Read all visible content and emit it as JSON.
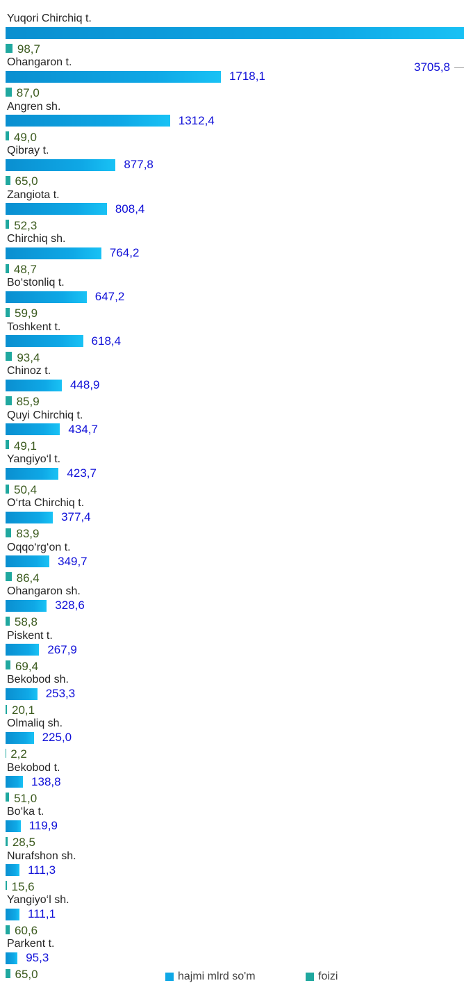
{
  "chart_data": {
    "type": "bar",
    "orientation": "horizontal",
    "categories": [
      "Yuqori Chirchiq t.",
      "Ohangaron t.",
      "Angren sh.",
      "Qibray t.",
      "Zangiota t.",
      "Chirchiq sh.",
      "Bo‘stonliq t.",
      "Toshkent t.",
      "Chinoz t.",
      "Quyi Chirchiq t.",
      "Yangiyo‘l t.",
      "O‘rta Chirchiq t.",
      "Oqqo‘rg‘on t.",
      "Ohangaron sh.",
      "Piskent t.",
      "Bekobod sh.",
      "Olmaliq sh.",
      "Bekobod t.",
      "Bo‘ka t.",
      "Nurafshon sh.",
      "Yangiyo‘l sh.",
      "Parkent t."
    ],
    "series": [
      {
        "name": "hajmi mlrd so'm",
        "color": "#0fa8e6",
        "values": [
          3705.8,
          1718.1,
          1312.4,
          877.8,
          808.4,
          764.2,
          647.2,
          618.4,
          448.9,
          434.7,
          423.7,
          377.4,
          349.7,
          328.6,
          267.9,
          253.3,
          225.0,
          138.8,
          119.9,
          111.3,
          111.1,
          95.3
        ],
        "value_labels": [
          "3705,8",
          "1718,1",
          "1312,4",
          "877,8",
          "808,4",
          "764,2",
          "647,2",
          "618,4",
          "448,9",
          "434,7",
          "423,7",
          "377,4",
          "349,7",
          "328,6",
          "267,9",
          "253,3",
          "225,0",
          "138,8",
          "119,9",
          "111,3",
          "111,1",
          "95,3"
        ]
      },
      {
        "name": "foizi",
        "color": "#20a89f",
        "values": [
          98.7,
          87.0,
          49.0,
          65.0,
          52.3,
          48.7,
          59.9,
          93.4,
          85.9,
          49.1,
          50.4,
          83.9,
          86.4,
          58.8,
          69.4,
          20.1,
          2.2,
          51.0,
          28.5,
          15.6,
          60.6,
          65.0
        ],
        "value_labels": [
          "98,7",
          "87,0",
          "49,0",
          "65,0",
          "52,3",
          "48,7",
          "59,9",
          "93,4",
          "85,9",
          "49,1",
          "50,4",
          "83,9",
          "86,4",
          "58,8",
          "69,4",
          "20,1",
          "2,2",
          "51,0",
          "28,5",
          "15,6",
          "60,6",
          "65,0"
        ]
      }
    ],
    "legend": "bottom"
  }
}
